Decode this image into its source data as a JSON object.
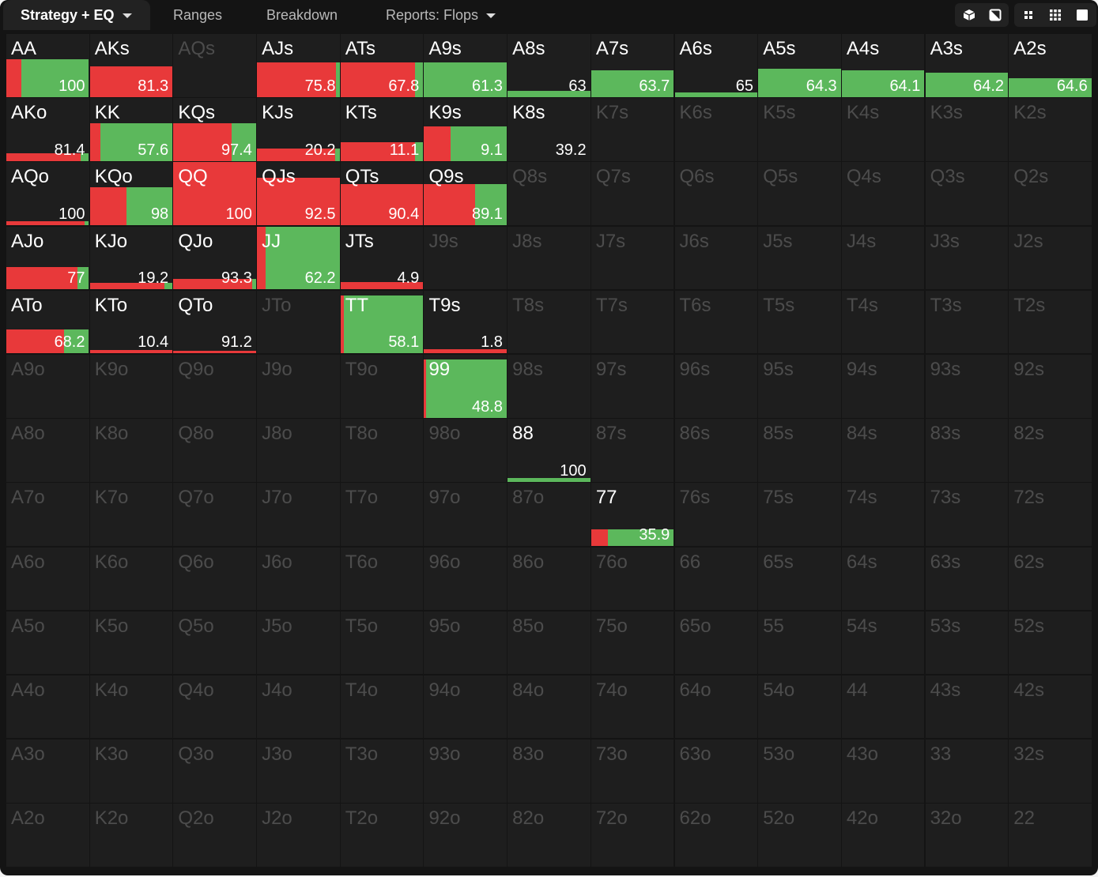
{
  "tabs": [
    {
      "label": "Strategy + EQ",
      "dropdown": true,
      "active": true
    },
    {
      "label": "Ranges",
      "dropdown": false,
      "active": false
    },
    {
      "label": "Breakdown",
      "dropdown": false,
      "active": false
    },
    {
      "label": "Reports: Flops",
      "dropdown": true,
      "active": false
    }
  ],
  "toolbar": [
    {
      "icon": "cube-icon"
    },
    {
      "icon": "contrast-icon"
    },
    {
      "icon": "compact-grid-icon"
    },
    {
      "icon": "grid-icon"
    },
    {
      "icon": "square-icon"
    }
  ],
  "colors": {
    "raise": "#e8393a",
    "call": "#5cb85c",
    "background": "#141414",
    "cell": "#1e1e1e"
  },
  "matrix": [
    [
      {
        "hand": "AA",
        "value": "100",
        "fill": 0.6,
        "raise": 0.18
      },
      {
        "hand": "AKs",
        "value": "81.3",
        "fill": 0.48,
        "raise": 1
      },
      {
        "hand": "AQs"
      },
      {
        "hand": "AJs",
        "value": "75.8",
        "fill": 0.55,
        "raise": 0.96
      },
      {
        "hand": "ATs",
        "value": "67.8",
        "fill": 0.55,
        "raise": 0.9
      },
      {
        "hand": "A9s",
        "value": "61.3",
        "fill": 0.55,
        "raise": 0
      },
      {
        "hand": "A8s",
        "value": "63",
        "fill": 0.1,
        "raise": 0
      },
      {
        "hand": "A7s",
        "value": "63.7",
        "fill": 0.42,
        "raise": 0
      },
      {
        "hand": "A6s",
        "value": "65",
        "fill": 0.07,
        "raise": 0
      },
      {
        "hand": "A5s",
        "value": "64.3",
        "fill": 0.45,
        "raise": 0
      },
      {
        "hand": "A4s",
        "value": "64.1",
        "fill": 0.42,
        "raise": 0
      },
      {
        "hand": "A3s",
        "value": "64.2",
        "fill": 0.38,
        "raise": 0
      },
      {
        "hand": "A2s",
        "value": "64.6",
        "fill": 0.3,
        "raise": 0
      }
    ],
    [
      {
        "hand": "AKo",
        "value": "81.4",
        "fill": 0.12,
        "raise": 0.9
      },
      {
        "hand": "KK",
        "value": "57.6",
        "fill": 0.6,
        "raise": 0.13
      },
      {
        "hand": "KQs",
        "value": "97.4",
        "fill": 0.6,
        "raise": 0.7
      },
      {
        "hand": "KJs",
        "value": "20.2",
        "fill": 0.2,
        "raise": 0.95
      },
      {
        "hand": "KTs",
        "value": "11.1",
        "fill": 0.3,
        "raise": 0.9
      },
      {
        "hand": "K9s",
        "value": "9.1",
        "fill": 0.55,
        "raise": 0.32
      },
      {
        "hand": "K8s",
        "value": "39.2",
        "fill": 0,
        "raise": 0
      },
      {
        "hand": "K7s"
      },
      {
        "hand": "K6s"
      },
      {
        "hand": "K5s"
      },
      {
        "hand": "K4s"
      },
      {
        "hand": "K3s"
      },
      {
        "hand": "K2s"
      }
    ],
    [
      {
        "hand": "AQo",
        "value": "100",
        "fill": 0.06,
        "raise": 0.95
      },
      {
        "hand": "KQo",
        "value": "98",
        "fill": 0.6,
        "raise": 0.44
      },
      {
        "hand": "QQ",
        "value": "100",
        "fill": 1,
        "raise": 1
      },
      {
        "hand": "QJs",
        "value": "92.5",
        "fill": 0.75,
        "raise": 1
      },
      {
        "hand": "QTs",
        "value": "90.4",
        "fill": 0.65,
        "raise": 1
      },
      {
        "hand": "Q9s",
        "value": "89.1",
        "fill": 0.65,
        "raise": 0.62
      },
      {
        "hand": "Q8s"
      },
      {
        "hand": "Q7s"
      },
      {
        "hand": "Q6s"
      },
      {
        "hand": "Q5s"
      },
      {
        "hand": "Q4s"
      },
      {
        "hand": "Q3s"
      },
      {
        "hand": "Q2s"
      }
    ],
    [
      {
        "hand": "AJo",
        "value": "77",
        "fill": 0.35,
        "raise": 0.86
      },
      {
        "hand": "KJo",
        "value": "19.2",
        "fill": 0.1,
        "raise": 0.9
      },
      {
        "hand": "QJo",
        "value": "93.3",
        "fill": 0.17,
        "raise": 0.95
      },
      {
        "hand": "JJ",
        "value": "62.2",
        "fill": 1,
        "raise": 0.1
      },
      {
        "hand": "JTs",
        "value": "4.9",
        "fill": 0.12,
        "raise": 1
      },
      {
        "hand": "J9s"
      },
      {
        "hand": "J8s"
      },
      {
        "hand": "J7s"
      },
      {
        "hand": "J6s"
      },
      {
        "hand": "J5s"
      },
      {
        "hand": "J4s"
      },
      {
        "hand": "J3s"
      },
      {
        "hand": "J2s"
      }
    ],
    [
      {
        "hand": "ATo",
        "value": "68.2",
        "fill": 0.38,
        "raise": 0.7
      },
      {
        "hand": "KTo",
        "value": "10.4",
        "fill": 0.05,
        "raise": 1
      },
      {
        "hand": "QTo",
        "value": "91.2",
        "fill": 0.04,
        "raise": 1
      },
      {
        "hand": "JTo"
      },
      {
        "hand": "TT",
        "value": "58.1",
        "fill": 0.92,
        "raise": 0.04
      },
      {
        "hand": "T9s",
        "value": "1.8",
        "fill": 0.07,
        "raise": 1
      },
      {
        "hand": "T8s"
      },
      {
        "hand": "T7s"
      },
      {
        "hand": "T6s"
      },
      {
        "hand": "T5s"
      },
      {
        "hand": "T4s"
      },
      {
        "hand": "T3s"
      },
      {
        "hand": "T2s"
      }
    ],
    [
      {
        "hand": "A9o"
      },
      {
        "hand": "K9o"
      },
      {
        "hand": "Q9o"
      },
      {
        "hand": "J9o"
      },
      {
        "hand": "T9o"
      },
      {
        "hand": "99",
        "value": "48.8",
        "fill": 0.92,
        "raise": 0.02
      },
      {
        "hand": "98s"
      },
      {
        "hand": "97s"
      },
      {
        "hand": "96s"
      },
      {
        "hand": "95s"
      },
      {
        "hand": "94s"
      },
      {
        "hand": "93s"
      },
      {
        "hand": "92s"
      }
    ],
    [
      {
        "hand": "A8o"
      },
      {
        "hand": "K8o"
      },
      {
        "hand": "Q8o"
      },
      {
        "hand": "J8o"
      },
      {
        "hand": "T8o"
      },
      {
        "hand": "98o"
      },
      {
        "hand": "88",
        "value": "100",
        "fill": 0.06,
        "raise": 0
      },
      {
        "hand": "87s"
      },
      {
        "hand": "86s"
      },
      {
        "hand": "85s"
      },
      {
        "hand": "84s"
      },
      {
        "hand": "83s"
      },
      {
        "hand": "82s"
      }
    ],
    [
      {
        "hand": "A7o"
      },
      {
        "hand": "K7o"
      },
      {
        "hand": "Q7o"
      },
      {
        "hand": "J7o"
      },
      {
        "hand": "T7o"
      },
      {
        "hand": "97o"
      },
      {
        "hand": "87o"
      },
      {
        "hand": "77",
        "value": "35.9",
        "fill": 0.26,
        "raise": 0.2
      },
      {
        "hand": "76s"
      },
      {
        "hand": "75s"
      },
      {
        "hand": "74s"
      },
      {
        "hand": "73s"
      },
      {
        "hand": "72s"
      }
    ],
    [
      {
        "hand": "A6o"
      },
      {
        "hand": "K6o"
      },
      {
        "hand": "Q6o"
      },
      {
        "hand": "J6o"
      },
      {
        "hand": "T6o"
      },
      {
        "hand": "96o"
      },
      {
        "hand": "86o"
      },
      {
        "hand": "76o"
      },
      {
        "hand": "66"
      },
      {
        "hand": "65s"
      },
      {
        "hand": "64s"
      },
      {
        "hand": "63s"
      },
      {
        "hand": "62s"
      }
    ],
    [
      {
        "hand": "A5o"
      },
      {
        "hand": "K5o"
      },
      {
        "hand": "Q5o"
      },
      {
        "hand": "J5o"
      },
      {
        "hand": "T5o"
      },
      {
        "hand": "95o"
      },
      {
        "hand": "85o"
      },
      {
        "hand": "75o"
      },
      {
        "hand": "65o"
      },
      {
        "hand": "55"
      },
      {
        "hand": "54s"
      },
      {
        "hand": "53s"
      },
      {
        "hand": "52s"
      }
    ],
    [
      {
        "hand": "A4o"
      },
      {
        "hand": "K4o"
      },
      {
        "hand": "Q4o"
      },
      {
        "hand": "J4o"
      },
      {
        "hand": "T4o"
      },
      {
        "hand": "94o"
      },
      {
        "hand": "84o"
      },
      {
        "hand": "74o"
      },
      {
        "hand": "64o"
      },
      {
        "hand": "54o"
      },
      {
        "hand": "44"
      },
      {
        "hand": "43s"
      },
      {
        "hand": "42s"
      }
    ],
    [
      {
        "hand": "A3o"
      },
      {
        "hand": "K3o"
      },
      {
        "hand": "Q3o"
      },
      {
        "hand": "J3o"
      },
      {
        "hand": "T3o"
      },
      {
        "hand": "93o"
      },
      {
        "hand": "83o"
      },
      {
        "hand": "73o"
      },
      {
        "hand": "63o"
      },
      {
        "hand": "53o"
      },
      {
        "hand": "43o"
      },
      {
        "hand": "33"
      },
      {
        "hand": "32s"
      }
    ],
    [
      {
        "hand": "A2o"
      },
      {
        "hand": "K2o"
      },
      {
        "hand": "Q2o"
      },
      {
        "hand": "J2o"
      },
      {
        "hand": "T2o"
      },
      {
        "hand": "92o"
      },
      {
        "hand": "82o"
      },
      {
        "hand": "72o"
      },
      {
        "hand": "62o"
      },
      {
        "hand": "52o"
      },
      {
        "hand": "42o"
      },
      {
        "hand": "32o"
      },
      {
        "hand": "22"
      }
    ]
  ]
}
